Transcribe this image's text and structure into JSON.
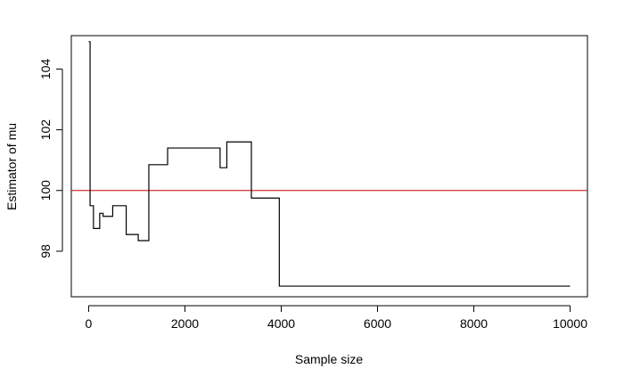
{
  "chart_data": {
    "type": "line",
    "title": "",
    "xlabel": "Sample size",
    "ylabel": "Estimator of mu",
    "xlim": [
      -360,
      10360
    ],
    "ylim": [
      96.5,
      105.1
    ],
    "x_ticks": [
      0,
      2000,
      4000,
      6000,
      8000,
      10000
    ],
    "y_ticks": [
      98,
      100,
      102,
      104
    ],
    "grid": false,
    "legend": "none",
    "reference_line": {
      "y": 100,
      "color": "#cc0000"
    },
    "series": [
      {
        "color": "#000000",
        "step": true,
        "x": [
          1,
          30,
          100,
          230,
          300,
          500,
          780,
          1030,
          1250,
          1640,
          2730,
          2870,
          3380,
          3960,
          10000
        ],
        "values": [
          104.9,
          99.5,
          98.75,
          99.25,
          99.15,
          99.5,
          98.55,
          98.35,
          100.85,
          101.4,
          100.75,
          101.6,
          99.75,
          96.85,
          96.85
        ]
      }
    ]
  }
}
